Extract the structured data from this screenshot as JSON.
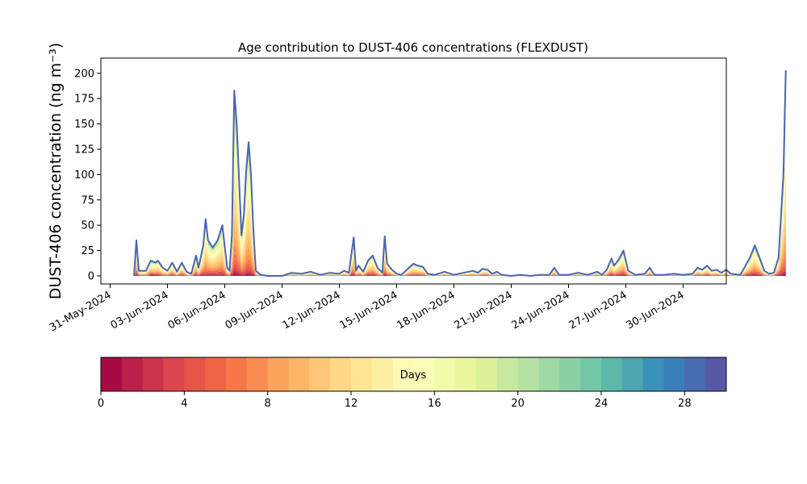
{
  "chart_data": {
    "type": "area",
    "stacked": true,
    "title": "Age contribution to DUST-406 concentrations (FLEXDUST)",
    "ylabel": "DUST-406 concentration (ng m⁻³)",
    "ylim": [
      -8,
      215
    ],
    "xlim": [
      "2024-05-31",
      "2024-07-03"
    ],
    "yticks": [
      0,
      25,
      50,
      75,
      100,
      125,
      150,
      175,
      200
    ],
    "xticks": [
      "31-May-2024",
      "03-Jun-2024",
      "06-Jun-2024",
      "09-Jun-2024",
      "12-Jun-2024",
      "15-Jun-2024",
      "18-Jun-2024",
      "21-Jun-2024",
      "24-Jun-2024",
      "27-Jun-2024",
      "30-Jun-2024"
    ],
    "xtick_dates": [
      "2024-05-31",
      "2024-06-03",
      "2024-06-06",
      "2024-06-09",
      "2024-06-12",
      "2024-06-15",
      "2024-06-18",
      "2024-06-21",
      "2024-06-24",
      "2024-06-27",
      "2024-06-30"
    ],
    "grid": false,
    "colorbar": {
      "label": "Days",
      "colormap": "Spectral",
      "range": [
        0,
        30
      ],
      "bins": 30,
      "ticks": [
        0,
        4,
        8,
        12,
        16,
        20,
        24,
        28
      ],
      "orientation": "horizontal",
      "placement": "bottom"
    },
    "total": [
      [
        "2024-06-01T06:00",
        0
      ],
      [
        "2024-06-01T09:00",
        35
      ],
      [
        "2024-06-01T12:00",
        5
      ],
      [
        "2024-06-01T21:00",
        5
      ],
      [
        "2024-06-02T03:00",
        15
      ],
      [
        "2024-06-02T09:00",
        13
      ],
      [
        "2024-06-02T12:00",
        15
      ],
      [
        "2024-06-02T18:00",
        8
      ],
      [
        "2024-06-03T00:00",
        5
      ],
      [
        "2024-06-03T06:00",
        13
      ],
      [
        "2024-06-03T12:00",
        4
      ],
      [
        "2024-06-03T18:00",
        13
      ],
      [
        "2024-06-04T00:00",
        4
      ],
      [
        "2024-06-04T06:00",
        2
      ],
      [
        "2024-06-04T12:00",
        20
      ],
      [
        "2024-06-04T15:00",
        8
      ],
      [
        "2024-06-04T21:00",
        30
      ],
      [
        "2024-06-05T00:00",
        56
      ],
      [
        "2024-06-05T03:00",
        35
      ],
      [
        "2024-06-05T09:00",
        28
      ],
      [
        "2024-06-05T15:00",
        35
      ],
      [
        "2024-06-05T21:00",
        50
      ],
      [
        "2024-06-06T03:00",
        8
      ],
      [
        "2024-06-06T06:00",
        5
      ],
      [
        "2024-06-06T09:00",
        40
      ],
      [
        "2024-06-06T12:00",
        183
      ],
      [
        "2024-06-06T15:00",
        150
      ],
      [
        "2024-06-06T21:00",
        40
      ],
      [
        "2024-06-07T00:00",
        60
      ],
      [
        "2024-06-07T03:00",
        105
      ],
      [
        "2024-06-07T06:00",
        132
      ],
      [
        "2024-06-07T09:00",
        100
      ],
      [
        "2024-06-07T12:00",
        45
      ],
      [
        "2024-06-07T15:00",
        5
      ],
      [
        "2024-06-07T21:00",
        1
      ],
      [
        "2024-06-08T06:00",
        0
      ],
      [
        "2024-06-09T00:00",
        0
      ],
      [
        "2024-06-09T12:00",
        3
      ],
      [
        "2024-06-10T00:00",
        2
      ],
      [
        "2024-06-10T12:00",
        4
      ],
      [
        "2024-06-11T00:00",
        1
      ],
      [
        "2024-06-11T12:00",
        3
      ],
      [
        "2024-06-12T00:00",
        2
      ],
      [
        "2024-06-12T06:00",
        5
      ],
      [
        "2024-06-12T12:00",
        3
      ],
      [
        "2024-06-12T18:00",
        38
      ],
      [
        "2024-06-12T21:00",
        5
      ],
      [
        "2024-06-13T00:00",
        10
      ],
      [
        "2024-06-13T06:00",
        4
      ],
      [
        "2024-06-13T12:00",
        15
      ],
      [
        "2024-06-13T18:00",
        20
      ],
      [
        "2024-06-14T00:00",
        8
      ],
      [
        "2024-06-14T06:00",
        3
      ],
      [
        "2024-06-14T09:00",
        39
      ],
      [
        "2024-06-14T12:00",
        12
      ],
      [
        "2024-06-14T18:00",
        6
      ],
      [
        "2024-06-15T00:00",
        2
      ],
      [
        "2024-06-15T06:00",
        1
      ],
      [
        "2024-06-15T21:00",
        12
      ],
      [
        "2024-06-16T03:00",
        10
      ],
      [
        "2024-06-16T09:00",
        9
      ],
      [
        "2024-06-16T15:00",
        2
      ],
      [
        "2024-06-17T00:00",
        1
      ],
      [
        "2024-06-17T12:00",
        4
      ],
      [
        "2024-06-18T00:00",
        1
      ],
      [
        "2024-06-18T12:00",
        3
      ],
      [
        "2024-06-19T00:00",
        5
      ],
      [
        "2024-06-19T06:00",
        3
      ],
      [
        "2024-06-19T12:00",
        7
      ],
      [
        "2024-06-19T18:00",
        6
      ],
      [
        "2024-06-20T00:00",
        2
      ],
      [
        "2024-06-20T06:00",
        4
      ],
      [
        "2024-06-20T12:00",
        1
      ],
      [
        "2024-06-21T00:00",
        0
      ],
      [
        "2024-06-21T12:00",
        1
      ],
      [
        "2024-06-22T00:00",
        0
      ],
      [
        "2024-06-22T12:00",
        1
      ],
      [
        "2024-06-23T00:00",
        1
      ],
      [
        "2024-06-23T06:00",
        8
      ],
      [
        "2024-06-23T12:00",
        1
      ],
      [
        "2024-06-24T00:00",
        1
      ],
      [
        "2024-06-24T12:00",
        3
      ],
      [
        "2024-06-25T00:00",
        1
      ],
      [
        "2024-06-25T12:00",
        4
      ],
      [
        "2024-06-25T18:00",
        1
      ],
      [
        "2024-06-26T00:00",
        6
      ],
      [
        "2024-06-26T06:00",
        17
      ],
      [
        "2024-06-26T09:00",
        10
      ],
      [
        "2024-06-26T15:00",
        16
      ],
      [
        "2024-06-26T21:00",
        25
      ],
      [
        "2024-06-27T03:00",
        5
      ],
      [
        "2024-06-27T12:00",
        1
      ],
      [
        "2024-06-28T00:00",
        2
      ],
      [
        "2024-06-28T06:00",
        8
      ],
      [
        "2024-06-28T12:00",
        1
      ],
      [
        "2024-06-29T00:00",
        1
      ],
      [
        "2024-06-29T12:00",
        2
      ],
      [
        "2024-06-30T00:00",
        1
      ],
      [
        "2024-06-30T12:00",
        2
      ],
      [
        "2024-06-30T18:00",
        8
      ],
      [
        "2024-07-01T00:00",
        6
      ],
      [
        "2024-07-01T06:00",
        10
      ],
      [
        "2024-07-01T12:00",
        5
      ],
      [
        "2024-07-01T18:00",
        6
      ],
      [
        "2024-07-02T00:00",
        3
      ],
      [
        "2024-07-02T06:00",
        6
      ],
      [
        "2024-07-02T12:00",
        2
      ],
      [
        "2024-07-03T00:00",
        1
      ],
      [
        "2024-07-03T12:00",
        18
      ],
      [
        "2024-07-03T18:00",
        30
      ],
      [
        "2024-07-04T00:00",
        18
      ],
      [
        "2024-07-04T06:00",
        5
      ],
      [
        "2024-07-04T12:00",
        2
      ],
      [
        "2024-07-04T18:00",
        3
      ],
      [
        "2024-07-05T00:00",
        18
      ],
      [
        "2024-07-05T06:00",
        100
      ],
      [
        "2024-07-05T09:00",
        203
      ]
    ]
  },
  "colors": {
    "spectral": [
      "#9e0142",
      "#d53e4f",
      "#f46d43",
      "#fdae61",
      "#fee08b",
      "#ffffbf",
      "#e6f598",
      "#abdda4",
      "#66c2a5",
      "#3288bd",
      "#5e4fa2"
    ],
    "axis": "#000000",
    "background": "#ffffff"
  }
}
